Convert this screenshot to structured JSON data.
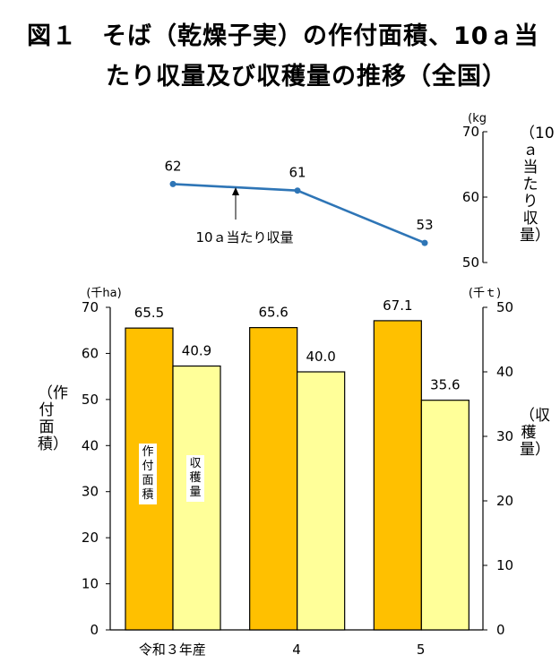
{
  "title": {
    "line1": "図１　そば（乾燥子実）の作付面積、10ａ当",
    "line2": "たり収量及び収穫量の推移（全国）"
  },
  "chart_data": [
    {
      "type": "line",
      "categories": [
        "令和３年産",
        "4",
        "5"
      ],
      "series": [
        {
          "name": "10ａ当たり収量",
          "values": [
            62,
            61,
            53
          ]
        }
      ],
      "ylim": [
        50,
        70
      ],
      "yticks": [
        50,
        60,
        70
      ],
      "unit": "(kg",
      "ylabel": "（10ａ当たり収量）",
      "annotation": "10ａ当たり収量",
      "color": "#2e75b6"
    },
    {
      "type": "bar",
      "categories": [
        "令和３年産",
        "4",
        "5"
      ],
      "series": [
        {
          "name": "作付面積",
          "values": [
            65.5,
            65.6,
            67.1
          ],
          "labels": [
            "65.5",
            "65.6",
            "67.1"
          ],
          "color": "#ffc000",
          "axis": "left"
        },
        {
          "name": "収穫量",
          "values": [
            40.9,
            40.0,
            35.6
          ],
          "labels": [
            "40.9",
            "40.0",
            "35.6"
          ],
          "color": "#ffff99",
          "axis": "right"
        }
      ],
      "left_axis": {
        "unit": "(千ha)",
        "label": "（作付面積）",
        "ylim": [
          0,
          70
        ],
        "ticks": [
          0,
          10,
          20,
          30,
          40,
          50,
          60,
          70
        ]
      },
      "right_axis": {
        "unit": "(千ｔ)",
        "label": "（収穫量）",
        "ylim": [
          0,
          50
        ],
        "ticks": [
          0,
          10,
          20,
          30,
          40,
          50
        ]
      },
      "bar_labels": [
        "作付面積",
        "収穫量"
      ]
    }
  ]
}
